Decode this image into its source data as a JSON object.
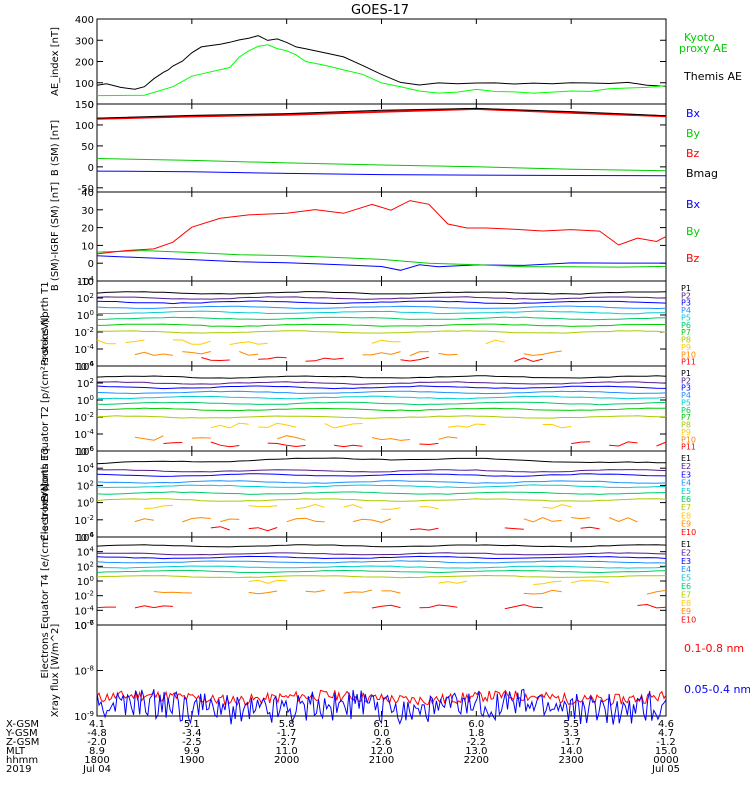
{
  "title": "GOES-17",
  "chart_data": [
    {
      "type": "line",
      "ylabel": "AE_index [nT]",
      "ylim": [
        0,
        400
      ],
      "yticks": [
        "0",
        "100",
        "200",
        "300",
        "400"
      ],
      "yscale": "linear",
      "series": [
        {
          "name": "Themis AE",
          "color": "#000000",
          "x": [
            0,
            0.1,
            0.25,
            0.4,
            0.5,
            0.6,
            0.7,
            0.75,
            0.8,
            0.9,
            1.0,
            1.1,
            1.2,
            1.3,
            1.4,
            1.5,
            1.6,
            1.7,
            1.8,
            1.9,
            2.0,
            2.1,
            2.2,
            2.4,
            2.6,
            2.8,
            3.0,
            3.2,
            3.4,
            3.6,
            3.8,
            4.0,
            4.2,
            4.4,
            4.6,
            4.8,
            5.0,
            5.2,
            5.4,
            5.6,
            5.8,
            6.0
          ],
          "y": [
            90,
            95,
            80,
            70,
            80,
            120,
            150,
            160,
            180,
            200,
            240,
            270,
            275,
            280,
            290,
            300,
            310,
            320,
            300,
            305,
            290,
            270,
            260,
            240,
            220,
            180,
            140,
            100,
            90,
            100,
            95,
            100,
            100,
            95,
            100,
            95,
            100,
            100,
            95,
            100,
            90,
            85
          ]
        },
        {
          "name": "Kyoto proxy AE",
          "color": "#00ff00",
          "x": [
            0,
            0.5,
            0.8,
            1.0,
            1.2,
            1.4,
            1.5,
            1.6,
            1.7,
            1.8,
            1.9,
            2.0,
            2.1,
            2.2,
            2.4,
            2.6,
            2.8,
            3.0,
            3.2,
            3.4,
            3.6,
            3.8,
            4.0,
            4.2,
            4.4,
            4.6,
            4.8,
            5.0,
            5.2,
            5.4,
            5.6,
            5.8,
            6.0
          ],
          "y": [
            40,
            40,
            80,
            130,
            150,
            170,
            220,
            250,
            270,
            280,
            260,
            250,
            230,
            200,
            180,
            160,
            140,
            100,
            80,
            60,
            50,
            55,
            70,
            60,
            55,
            50,
            55,
            60,
            60,
            70,
            75,
            80,
            85
          ]
        }
      ]
    },
    {
      "type": "line",
      "ylabel": "B (SM) [nT]",
      "ylim": [
        -60,
        150
      ],
      "yticks": [
        "-50",
        "0",
        "50",
        "100",
        "150"
      ],
      "yscale": "linear",
      "series": [
        {
          "name": "Bx",
          "color": "#0000ff",
          "x": [
            0,
            1,
            2,
            3,
            4,
            5,
            6
          ],
          "y": [
            -10,
            -12,
            -15,
            -18,
            -20,
            -20,
            -22
          ]
        },
        {
          "name": "By",
          "color": "#00cc00",
          "x": [
            0,
            1,
            2,
            3,
            4,
            5,
            6
          ],
          "y": [
            20,
            15,
            10,
            5,
            0,
            -5,
            -10
          ]
        },
        {
          "name": "Bz",
          "color": "#ff0000",
          "x": [
            0,
            1,
            2,
            3,
            4,
            5,
            6
          ],
          "y": [
            115,
            120,
            125,
            132,
            138,
            130,
            120
          ]
        },
        {
          "name": "Bmag",
          "color": "#000000",
          "x": [
            0,
            1,
            2,
            3,
            4,
            5,
            6
          ],
          "y": [
            117,
            122,
            127,
            134,
            140,
            132,
            122
          ]
        }
      ]
    },
    {
      "type": "line",
      "ylabel": "B (SM)-IGRF (SM) [nT]",
      "ylim": [
        -10,
        40
      ],
      "yticks": [
        "-10",
        "0",
        "10",
        "20",
        "30",
        "40"
      ],
      "yscale": "linear",
      "series": [
        {
          "name": "Bx",
          "color": "#0000ff",
          "x": [
            0,
            0.5,
            1,
            1.5,
            2,
            2.5,
            3,
            3.2,
            3.4,
            3.6,
            4,
            4.5,
            5,
            5.5,
            6
          ],
          "y": [
            4,
            3,
            2,
            1,
            0,
            -1,
            -2,
            -4,
            -1,
            -2,
            -1,
            -1,
            0,
            0,
            0
          ]
        },
        {
          "name": "By",
          "color": "#00cc00",
          "x": [
            0,
            0.5,
            1,
            1.5,
            2,
            2.5,
            3,
            3.5,
            4,
            4.5,
            5,
            5.5,
            6
          ],
          "y": [
            6,
            7,
            6,
            5,
            4,
            3,
            2,
            0,
            -1,
            -2,
            -2,
            -2,
            -2
          ]
        },
        {
          "name": "Bz",
          "color": "#ff0000",
          "x": [
            0,
            0.3,
            0.6,
            0.8,
            1.0,
            1.3,
            1.6,
            2.0,
            2.3,
            2.6,
            2.9,
            3.1,
            3.3,
            3.5,
            3.7,
            3.9,
            4.1,
            4.4,
            4.7,
            5.0,
            5.3,
            5.5,
            5.7,
            5.9,
            6.0
          ],
          "y": [
            5,
            7,
            8,
            12,
            20,
            25,
            27,
            28,
            30,
            28,
            33,
            30,
            35,
            33,
            22,
            20,
            20,
            19,
            18,
            19,
            18,
            10,
            14,
            12,
            15
          ]
        }
      ]
    },
    {
      "type": "line",
      "ylabel": "Protons North T1",
      "yscale": "log",
      "ylim_exp": [
        -6,
        4
      ],
      "yticks": [
        "10^4",
        "10^2",
        "10^0",
        "10^-2",
        "10^-4",
        "10^-6"
      ],
      "channels": [
        "P1",
        "P2",
        "P3",
        "P4",
        "P5",
        "P6",
        "P7",
        "P8",
        "P9",
        "P10",
        "P11"
      ],
      "channel_colors": [
        "#000000",
        "#551a8b",
        "#0000ff",
        "#1e90ff",
        "#00ced1",
        "#00cc66",
        "#00cc00",
        "#aacc00",
        "#ffcc00",
        "#ff8800",
        "#ff0000"
      ],
      "channel_levels_exp": [
        2.6,
        2.0,
        1.5,
        0.9,
        0.3,
        -0.4,
        -1.2,
        -2.0,
        -3.2,
        -4.5,
        -5.2
      ]
    },
    {
      "type": "line",
      "ylabel": "Protons Equator T2 [p/(cm²-s-sr-keV)]",
      "yscale": "log",
      "ylim_exp": [
        -6,
        4
      ],
      "yticks": [
        "10^4",
        "10^2",
        "10^0",
        "10^-2",
        "10^-4",
        "10^-6"
      ],
      "channels": [
        "P1",
        "P2",
        "P3",
        "P4",
        "P5",
        "P6",
        "P7",
        "P8",
        "P9",
        "P10",
        "P11"
      ],
      "channel_colors": [
        "#000000",
        "#551a8b",
        "#0000ff",
        "#1e90ff",
        "#00ced1",
        "#00cc66",
        "#00cc00",
        "#aacc00",
        "#ffcc00",
        "#ff8800",
        "#ff0000"
      ],
      "channel_levels_exp": [
        2.7,
        2.0,
        1.5,
        0.9,
        0.3,
        -0.4,
        -1.1,
        -2.0,
        -3.0,
        -4.5,
        -5.2
      ]
    },
    {
      "type": "line",
      "ylabel": "Electrons North T3",
      "yscale": "log",
      "ylim_exp": [
        -4,
        6
      ],
      "yticks": [
        "10^6",
        "10^4",
        "10^2",
        "10^0",
        "10^-2",
        "10^-4"
      ],
      "channels": [
        "E1",
        "E2",
        "E3",
        "E4",
        "E5",
        "E6",
        "E7",
        "E8",
        "E9",
        "E10"
      ],
      "channel_colors": [
        "#000000",
        "#551a8b",
        "#0000ff",
        "#1e90ff",
        "#00ced1",
        "#00cc66",
        "#aacc00",
        "#ffcc00",
        "#ff8800",
        "#ff0000"
      ],
      "channel_levels_exp": [
        4.5,
        3.7,
        3.2,
        2.4,
        1.9,
        1.1,
        0.3,
        -0.5,
        -2.0,
        -3.0
      ]
    },
    {
      "type": "line",
      "ylabel": "Electrons Equator T4 [e/(cm²-s-sr-keV)]",
      "yscale": "log",
      "ylim_exp": [
        -6,
        6
      ],
      "yticks": [
        "10^6",
        "10^4",
        "10^2",
        "10^0",
        "10^-2",
        "10^-4",
        "10^-6"
      ],
      "channels": [
        "E1",
        "E2",
        "E3",
        "E4",
        "E5",
        "E6",
        "E7",
        "E8",
        "E9",
        "E10"
      ],
      "channel_colors": [
        "#000000",
        "#551a8b",
        "#0000ff",
        "#1e90ff",
        "#00ced1",
        "#00cc66",
        "#aacc00",
        "#ffcc00",
        "#ff8800",
        "#ff0000"
      ],
      "channel_levels_exp": [
        4.8,
        3.7,
        3.2,
        2.6,
        1.9,
        1.3,
        0.6,
        -0.2,
        -1.5,
        -3.5
      ]
    },
    {
      "type": "line",
      "ylabel": "Xray flux [W/m^2]",
      "yscale": "log",
      "ylim_exp": [
        -9,
        -7
      ],
      "yticks": [
        "10^-7",
        "10^-8",
        "10^-9"
      ],
      "series": [
        {
          "name": "0.1-0.8 nm",
          "color": "#ff0000",
          "level_exp": -8.6
        },
        {
          "name": "0.05-0.4 nm",
          "color": "#0000ff",
          "level_exp": -8.8
        }
      ]
    }
  ],
  "right_labels": {
    "panel1": [
      "Kyoto",
      "proxy AE",
      "Themis AE"
    ],
    "panel2": [
      "Bx",
      "By",
      "Bz",
      "Bmag"
    ],
    "panel3": [
      "Bx",
      "By",
      "Bz"
    ],
    "xray": [
      "0.1-0.8 nm",
      "0.05-0.4 nm"
    ]
  },
  "footer": {
    "row_labels": [
      "X-GSM",
      "Y-GSM",
      "Z-GSM",
      "MLT",
      "hhmm",
      "2019"
    ],
    "columns": [
      [
        "4.1",
        "-4.8",
        "-2.0",
        "8.9",
        "1800",
        "Jul 04"
      ],
      [
        "5.1",
        "-3.4",
        "-2.5",
        "9.9",
        "1900",
        ""
      ],
      [
        "5.8",
        "-1.7",
        "-2.7",
        "11.0",
        "2000",
        ""
      ],
      [
        "6.1",
        "0.0",
        "-2.6",
        "12.0",
        "2100",
        ""
      ],
      [
        "6.0",
        "1.8",
        "-2.2",
        "13.0",
        "2200",
        ""
      ],
      [
        "5.5",
        "3.3",
        "-1.7",
        "14.0",
        "2300",
        ""
      ],
      [
        "4.6",
        "4.7",
        "-1.2",
        "15.0",
        "0000",
        "Jul 05"
      ]
    ]
  }
}
